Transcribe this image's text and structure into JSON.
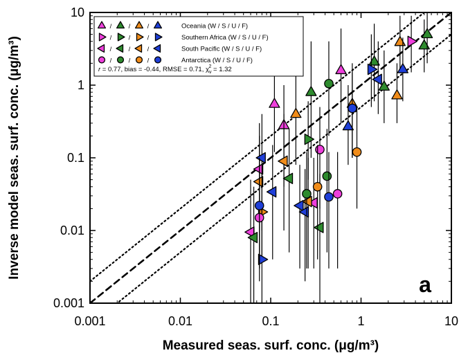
{
  "chart_data": {
    "type": "scatter",
    "panel_label": "a",
    "xlabel": "Measured seas. surf. conc. (μg/m³)",
    "ylabel": "Inverse model seas. surf. conc. (μg/m³)",
    "x_scale": "log",
    "y_scale": "log",
    "xlim": [
      0.001,
      10
    ],
    "ylim": [
      0.001,
      10
    ],
    "x_tick_labels": [
      "0.001",
      "0.01",
      "0.1",
      "1",
      "10"
    ],
    "y_tick_labels": [
      "0.001",
      "0.01",
      "0.1",
      "1",
      "10"
    ],
    "grid": false,
    "legend_position": "top-left",
    "season_colors": {
      "W": "#ee3fdc",
      "S": "#2e8b2e",
      "U": "#f08c1a",
      "F": "#1f3fd8"
    },
    "reference_lines": [
      {
        "kind": "1:1",
        "style": "dashed"
      },
      {
        "kind": "2:1",
        "style": "dotted"
      },
      {
        "kind": "1:2",
        "style": "dotted"
      }
    ],
    "legend": [
      {
        "label": "Oceania (W / S / U / F)",
        "marker": "triangle-up"
      },
      {
        "label": "Southern Africa (W / S / U / F)",
        "marker": "triangle-right"
      },
      {
        "label": "South Pacific (W / S / U / F)",
        "marker": "triangle-left"
      },
      {
        "label": "Antarctica (W / S / U / F)",
        "marker": "circle"
      }
    ],
    "legend_separator": "/",
    "stats_text": {
      "r_label": "r",
      "rest": " = 0.77, bias = -0.44, RMSE = 0.71, χ",
      "chi_sub": "v",
      "chi_sup": "2",
      "chi_value": " = 1.32"
    },
    "series": [
      {
        "region": "Oceania",
        "marker": "triangle-up",
        "points": [
          {
            "season": "W",
            "x": 0.11,
            "y": 0.55,
            "ylo": 0.12,
            "yhi": 2.0
          },
          {
            "season": "W",
            "x": 0.14,
            "y": 0.28,
            "ylo": 0.04,
            "yhi": 1.0
          },
          {
            "season": "W",
            "x": 0.6,
            "y": 1.6,
            "ylo": 0.3,
            "yhi": 6.0
          },
          {
            "season": "S",
            "x": 0.28,
            "y": 0.8,
            "ylo": 0.1,
            "yhi": 4.0
          },
          {
            "season": "S",
            "x": 1.4,
            "y": 2.1,
            "ylo": 0.6,
            "yhi": 7.0
          },
          {
            "season": "S",
            "x": 1.8,
            "y": 0.95,
            "ylo": 0.3,
            "yhi": 3.0
          },
          {
            "season": "S",
            "x": 5.0,
            "y": 3.5,
            "ylo": 1.5,
            "yhi": 8.0
          },
          {
            "season": "S",
            "x": 5.4,
            "y": 5.0,
            "ylo": 2.0,
            "yhi": 10
          },
          {
            "season": "U",
            "x": 0.19,
            "y": 0.4,
            "ylo": 0.08,
            "yhi": 1.5
          },
          {
            "season": "U",
            "x": 0.8,
            "y": 0.55,
            "ylo": 0.1,
            "yhi": 2.0
          },
          {
            "season": "U",
            "x": 2.5,
            "y": 0.72,
            "ylo": 0.3,
            "yhi": 2.0
          },
          {
            "season": "U",
            "x": 2.7,
            "y": 3.9,
            "ylo": 1.5,
            "yhi": 9.0
          },
          {
            "season": "F",
            "x": 0.72,
            "y": 0.27,
            "ylo": 0.08,
            "yhi": 1.0
          },
          {
            "season": "F",
            "x": 2.9,
            "y": 1.65,
            "ylo": 0.6,
            "yhi": 4.5
          }
        ]
      },
      {
        "region": "Southern Africa",
        "marker": "triangle-right",
        "points": [
          {
            "season": "W",
            "x": 3.6,
            "y": 4.0,
            "ylo": 1.5,
            "yhi": 9.0
          },
          {
            "season": "S",
            "x": 0.26,
            "y": 0.18,
            "ylo": 0.05,
            "yhi": 0.6
          },
          {
            "season": "U",
            "x": 0.08,
            "y": 0.018,
            "ylo": 0.004,
            "yhi": 0.08
          },
          {
            "season": "F",
            "x": 1.3,
            "y": 1.65,
            "ylo": 0.5,
            "yhi": 5.0
          },
          {
            "season": "F",
            "x": 0.08,
            "y": 0.004,
            "ylo": 0.001,
            "yhi": 0.02
          }
        ]
      },
      {
        "region": "South Pacific",
        "marker": "triangle-left",
        "points": [
          {
            "season": "W",
            "x": 0.06,
            "y": 0.0095,
            "ylo": 0.001,
            "yhi": 0.05
          },
          {
            "season": "W",
            "x": 0.075,
            "y": 0.07,
            "ylo": 0.005,
            "yhi": 0.3
          },
          {
            "season": "W",
            "x": 0.3,
            "y": 0.024,
            "ylo": 0.003,
            "yhi": 0.1
          },
          {
            "season": "S",
            "x": 0.065,
            "y": 0.008,
            "ylo": 0.001,
            "yhi": 0.04
          },
          {
            "season": "S",
            "x": 0.16,
            "y": 0.052,
            "ylo": 0.005,
            "yhi": 0.25
          },
          {
            "season": "S",
            "x": 0.35,
            "y": 0.011,
            "ylo": 0.001,
            "yhi": 0.06
          },
          {
            "season": "U",
            "x": 0.075,
            "y": 0.047,
            "ylo": 0.004,
            "yhi": 0.2
          },
          {
            "season": "U",
            "x": 0.14,
            "y": 0.09,
            "ylo": 0.01,
            "yhi": 0.4
          },
          {
            "season": "U",
            "x": 0.26,
            "y": 0.025,
            "ylo": 0.003,
            "yhi": 0.1
          },
          {
            "season": "F",
            "x": 0.08,
            "y": 0.1,
            "ylo": 0.01,
            "yhi": 0.4
          },
          {
            "season": "F",
            "x": 0.105,
            "y": 0.034,
            "ylo": 0.004,
            "yhi": 0.15
          },
          {
            "season": "F",
            "x": 0.21,
            "y": 0.022,
            "ylo": 0.003,
            "yhi": 0.08
          },
          {
            "season": "F",
            "x": 0.24,
            "y": 0.018,
            "ylo": 0.002,
            "yhi": 0.07
          },
          {
            "season": "F",
            "x": 1.55,
            "y": 1.2,
            "ylo": 0.4,
            "yhi": 4.0
          }
        ]
      },
      {
        "region": "Antarctica",
        "marker": "circle",
        "points": [
          {
            "season": "W",
            "x": 0.075,
            "y": 0.015,
            "ylo": 0.002,
            "yhi": 0.06
          },
          {
            "season": "W",
            "x": 0.35,
            "y": 0.13,
            "ylo": 0.02,
            "yhi": 0.5
          },
          {
            "season": "W",
            "x": 0.55,
            "y": 0.032,
            "ylo": 0.003,
            "yhi": 0.12
          },
          {
            "season": "S",
            "x": 0.25,
            "y": 0.032,
            "ylo": 0.003,
            "yhi": 0.12
          },
          {
            "season": "S",
            "x": 0.42,
            "y": 0.056,
            "ylo": 0.005,
            "yhi": 0.25
          },
          {
            "season": "S",
            "x": 0.44,
            "y": 1.05,
            "ylo": 0.2,
            "yhi": 4.0
          },
          {
            "season": "U",
            "x": 0.33,
            "y": 0.04,
            "ylo": 0.004,
            "yhi": 0.15
          },
          {
            "season": "U",
            "x": 0.9,
            "y": 0.12,
            "ylo": 0.02,
            "yhi": 0.5
          },
          {
            "season": "F",
            "x": 0.075,
            "y": 0.022,
            "ylo": 0.003,
            "yhi": 0.1
          },
          {
            "season": "F",
            "x": 0.44,
            "y": 0.029,
            "ylo": 0.003,
            "yhi": 0.12
          },
          {
            "season": "F",
            "x": 0.8,
            "y": 0.48,
            "ylo": 0.1,
            "yhi": 1.5
          }
        ]
      }
    ]
  }
}
